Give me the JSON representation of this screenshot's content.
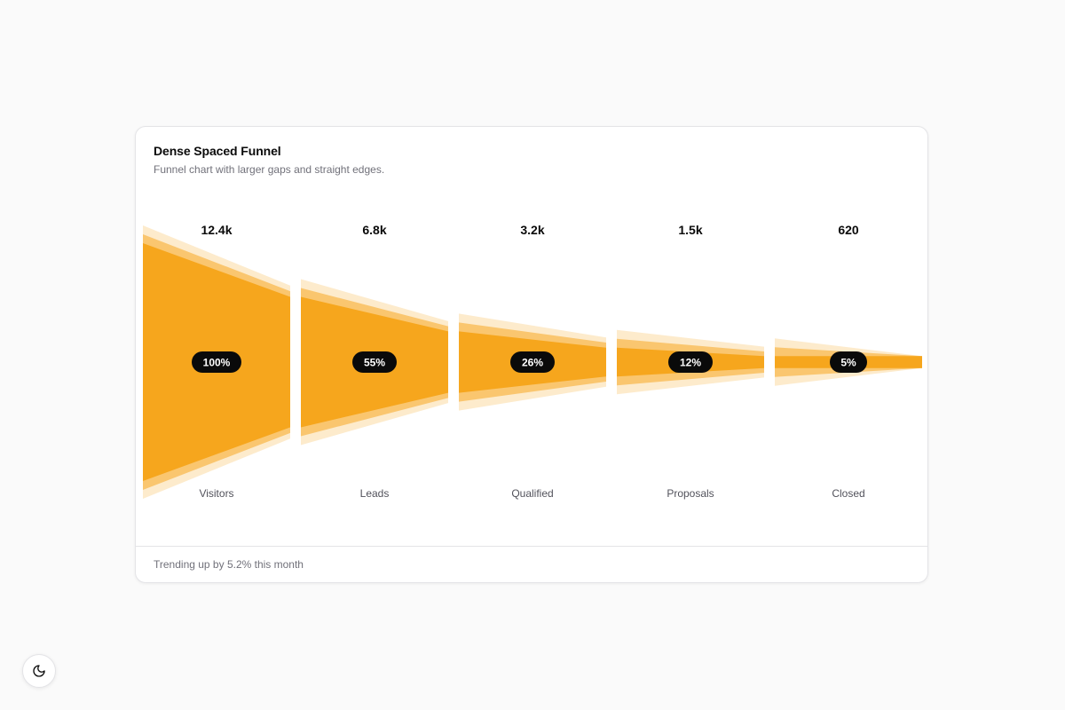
{
  "card": {
    "title": "Dense Spaced Funnel",
    "description": "Funnel chart with larger gaps and straight edges.",
    "footer": "Trending up by 5.2% this month"
  },
  "theme_toggle": {
    "icon": "moon-icon"
  },
  "colors": {
    "main": "#f6a61d",
    "layer_mid": "#fac66f",
    "layer_outer": "#fdebcc",
    "badge_bg": "#0a0a0a",
    "badge_text": "#ffffff"
  },
  "chart_data": {
    "type": "funnel",
    "title": "Dense Spaced Funnel",
    "stages": [
      {
        "label": "Visitors",
        "value": 12400,
        "value_label": "12.4k",
        "percent_label": "100%"
      },
      {
        "label": "Leads",
        "value": 6800,
        "value_label": "6.8k",
        "percent_label": "55%"
      },
      {
        "label": "Qualified",
        "value": 3200,
        "value_label": "3.2k",
        "percent_label": "26%"
      },
      {
        "label": "Proposals",
        "value": 1500,
        "value_label": "1.5k",
        "percent_label": "12%"
      },
      {
        "label": "Closed",
        "value": 620,
        "value_label": "620",
        "percent_label": "5%"
      }
    ]
  }
}
